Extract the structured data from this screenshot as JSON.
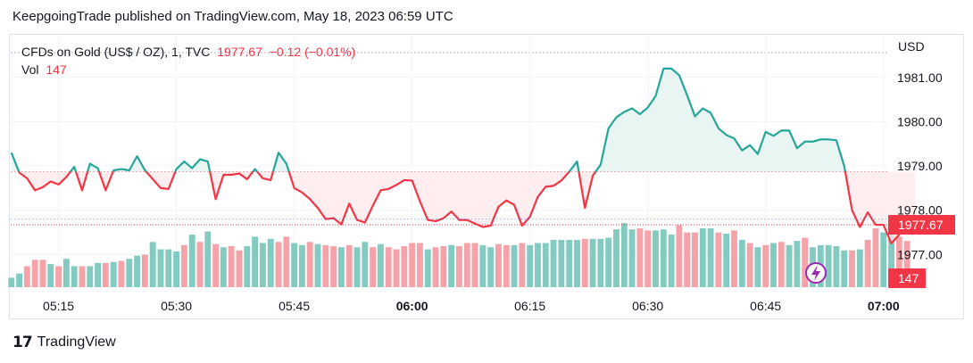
{
  "header": {
    "text": "KeepgoingTrade published on TradingView.com, May 18, 2023 06:59 UTC"
  },
  "legend": {
    "symbol": "CFDs on Gold (US$ / OZ), 1, TVC",
    "price": "1977.67",
    "change": "−0.12 (−0.01%)",
    "vol_label": "Vol",
    "vol_value": "147"
  },
  "currency": "USD",
  "footer": {
    "brand": "TradingView"
  },
  "colors": {
    "up": "#26a69a",
    "down": "#f23645",
    "up_fill": "#e6f4f2",
    "down_fill": "#fde8ea"
  },
  "chart_data": {
    "type": "area",
    "baseline": 1978.87,
    "last_price": "1977.67",
    "last_volume": "147",
    "ylim": [
      1976.2,
      1981.5
    ],
    "y_ticks": [
      "1981.00",
      "1980.00",
      "1979.00",
      "1978.00",
      "1977.00"
    ],
    "x_ticks": [
      {
        "label": "05:15",
        "t": 6,
        "bold": false
      },
      {
        "label": "05:30",
        "t": 21,
        "bold": false
      },
      {
        "label": "05:45",
        "t": 36,
        "bold": false
      },
      {
        "label": "06:00",
        "t": 51,
        "bold": true
      },
      {
        "label": "06:15",
        "t": 66,
        "bold": false
      },
      {
        "label": "06:30",
        "t": 81,
        "bold": false
      },
      {
        "label": "06:45",
        "t": 96,
        "bold": false
      },
      {
        "label": "07:00",
        "t": 111,
        "bold": true
      }
    ],
    "x_range": [
      -0.2,
      111.6
    ],
    "series": [
      {
        "values": [
          1979.3,
          1978.85,
          1978.72,
          1978.45,
          1978.52,
          1978.65,
          1978.58,
          1978.75,
          1978.98,
          1978.45,
          1979.05,
          1978.95,
          1978.45,
          1978.9,
          1978.93,
          1978.9,
          1979.22,
          1978.9,
          1978.7,
          1978.5,
          1978.48,
          1978.93,
          1979.1,
          1978.95,
          1979.15,
          1979.1,
          1978.25,
          1978.8,
          1978.8,
          1978.83,
          1978.7,
          1978.93,
          1978.72,
          1978.68,
          1979.3,
          1979.05,
          1978.5,
          1978.4,
          1978.25,
          1978.05,
          1977.8,
          1977.82,
          1977.68,
          1978.15,
          1977.78,
          1977.72,
          1978.1,
          1978.45,
          1978.48,
          1978.57,
          1978.68,
          1978.67,
          1978.2,
          1977.78,
          1977.75,
          1977.82,
          1977.97,
          1977.78,
          1977.78,
          1977.7,
          1977.62,
          1977.65,
          1978.08,
          1978.22,
          1978.12,
          1977.65,
          1977.85,
          1978.3,
          1978.53,
          1978.55,
          1978.67,
          1978.87,
          1979.1,
          1978.05,
          1978.78,
          1979.03,
          1979.85,
          1980.1,
          1980.22,
          1980.3,
          1980.17,
          1980.32,
          1980.58,
          1981.2,
          1981.2,
          1981.05,
          1980.6,
          1980.12,
          1980.3,
          1980.2,
          1979.85,
          1979.7,
          1979.62,
          1979.35,
          1979.47,
          1979.27,
          1979.77,
          1979.68,
          1979.8,
          1979.8,
          1979.4,
          1979.55,
          1979.55,
          1979.6,
          1979.6,
          1979.58,
          1979.0,
          1978.0,
          1977.62,
          1977.95,
          1977.67,
          1977.67,
          1977.25,
          1977.45,
          1977.78,
          1977.67
        ]
      }
    ],
    "volume": {
      "ylim": [
        0,
        950
      ],
      "values": [
        90,
        130,
        200,
        260,
        260,
        220,
        200,
        270,
        200,
        200,
        200,
        230,
        230,
        240,
        250,
        270,
        300,
        310,
        430,
        360,
        360,
        340,
        400,
        500,
        430,
        530,
        410,
        380,
        390,
        350,
        390,
        480,
        420,
        460,
        430,
        480,
        420,
        400,
        430,
        410,
        400,
        390,
        380,
        400,
        380,
        430,
        380,
        410,
        380,
        360,
        390,
        420,
        420,
        360,
        380,
        390,
        400,
        390,
        420,
        420,
        400,
        380,
        410,
        400,
        400,
        420,
        400,
        420,
        420,
        450,
        450,
        450,
        450,
        460,
        460,
        460,
        470,
        550,
        610,
        550,
        560,
        540,
        540,
        550,
        500,
        590,
        520,
        520,
        560,
        560,
        520,
        510,
        540,
        450,
        420,
        380,
        400,
        420,
        430,
        400,
        440,
        470,
        380,
        400,
        400,
        390,
        350,
        350,
        360,
        450,
        560,
        520,
        510,
        480,
        440,
        147
      ],
      "colors": [
        "up",
        "up",
        "down",
        "down",
        "down",
        "up",
        "down",
        "up",
        "up",
        "down",
        "up",
        "up",
        "down",
        "up",
        "down",
        "up",
        "up",
        "down",
        "up",
        "up",
        "up",
        "up",
        "down",
        "up",
        "down",
        "up",
        "down",
        "up",
        "down",
        "down",
        "up",
        "up",
        "up",
        "up",
        "down",
        "down",
        "up",
        "up",
        "down",
        "up",
        "down",
        "down",
        "up",
        "down",
        "up",
        "up",
        "down",
        "up",
        "down",
        "down",
        "down",
        "down",
        "down",
        "up",
        "down",
        "down",
        "up",
        "down",
        "down",
        "down",
        "up",
        "up",
        "down",
        "down",
        "up",
        "down",
        "up",
        "up",
        "up",
        "up",
        "up",
        "up",
        "up",
        "down",
        "up",
        "up",
        "up",
        "up",
        "up",
        "up",
        "down",
        "down",
        "up",
        "up",
        "up",
        "down",
        "down",
        "down",
        "up",
        "up",
        "down",
        "up",
        "down",
        "up",
        "down",
        "up",
        "down",
        "up",
        "down",
        "up",
        "up",
        "down",
        "up",
        "up",
        "up",
        "up",
        "up",
        "down",
        "up",
        "down",
        "down",
        "up",
        "up",
        "down",
        "down",
        "up"
      ]
    }
  }
}
